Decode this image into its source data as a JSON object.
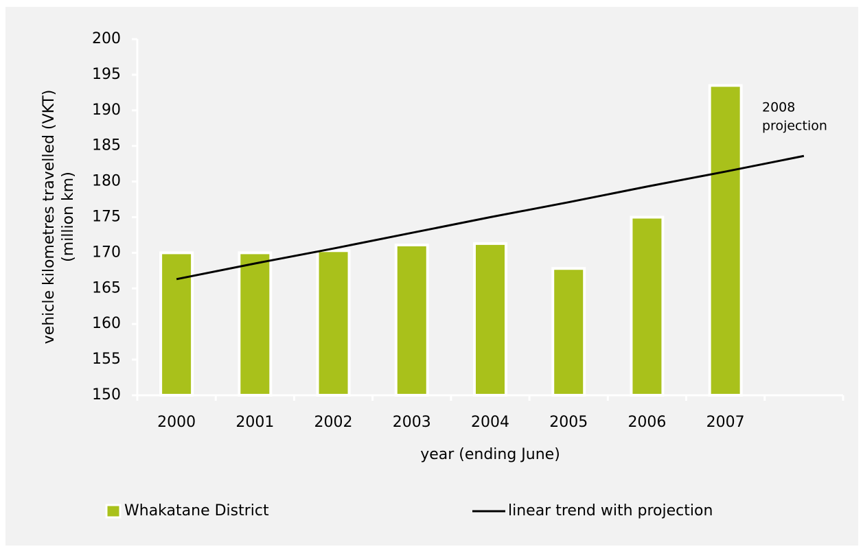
{
  "chart_data": {
    "type": "bar",
    "y_label": [
      "vehicle kilometres travelled (VKT)",
      "(million km)"
    ],
    "x_label": "year (ending June)",
    "annotation": [
      "2008",
      "projection"
    ],
    "categories": [
      "2000",
      "2001",
      "2002",
      "2003",
      "2004",
      "2005",
      "2006",
      "2007",
      null
    ],
    "series": [
      {
        "name": "Whakatane District",
        "type": "bar",
        "color": "#a9c11b",
        "values": [
          170,
          170,
          170.3,
          171.1,
          171.3,
          167.8,
          175,
          193.5,
          null
        ]
      },
      {
        "name": "linear trend with projection",
        "type": "line",
        "color": "#000000",
        "values": [
          166.3,
          168.5,
          170.6,
          172.8,
          175.0,
          177.1,
          179.3,
          181.4,
          183.6
        ]
      }
    ],
    "ylim": [
      150,
      200
    ],
    "yticks": [
      150,
      155,
      160,
      165,
      170,
      175,
      180,
      185,
      190,
      195,
      200
    ],
    "grid": false
  }
}
